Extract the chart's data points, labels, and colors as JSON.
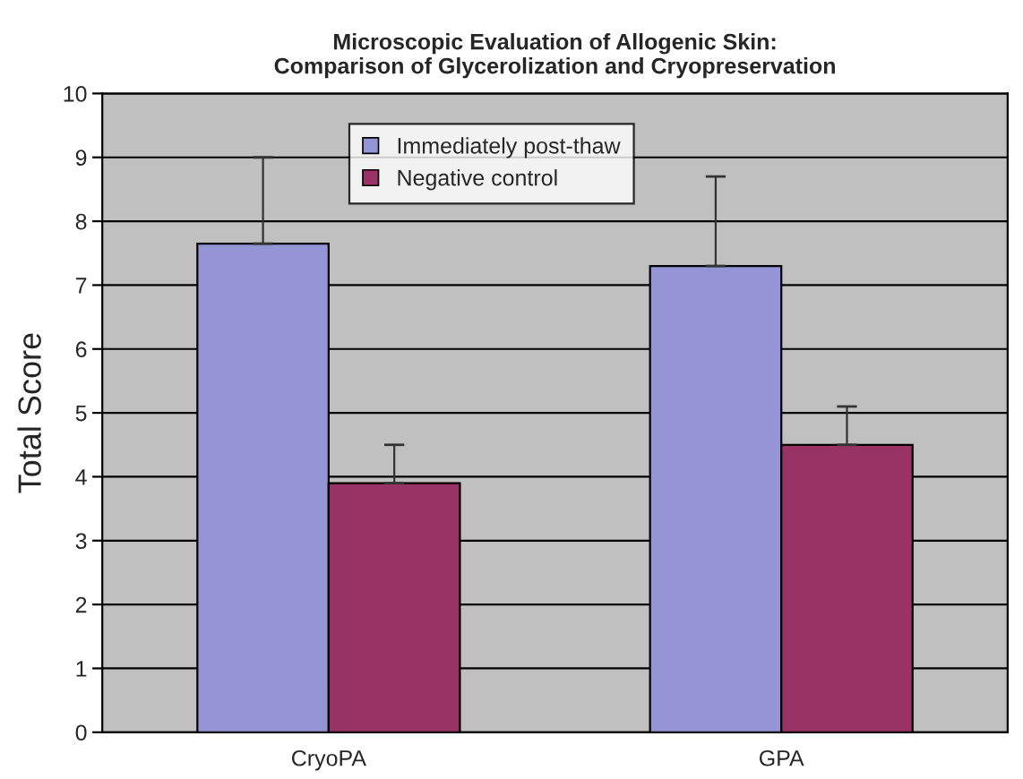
{
  "chart_data": {
    "type": "bar",
    "title": "Microscopic Evaluation of Allogenic Skin:\nComparison of Glycerolization and Cryopreservation",
    "ylabel": "Total Score",
    "categories": [
      "CryoPA",
      "GPA"
    ],
    "series": [
      {
        "name": "Immediately post-thaw",
        "color": "#9494d6",
        "values": [
          7.65,
          7.3
        ],
        "errors": [
          [
            7.65,
            9.0
          ],
          [
            7.3,
            8.7
          ]
        ]
      },
      {
        "name": "Negative control",
        "color": "#993366",
        "values": [
          3.9,
          4.5
        ],
        "errors": [
          [
            3.9,
            4.5
          ],
          [
            4.5,
            5.1
          ]
        ]
      }
    ],
    "ylim": [
      0,
      10
    ],
    "yticks": [
      0,
      1,
      2,
      3,
      4,
      5,
      6,
      7,
      8,
      9,
      10
    ],
    "grid": "y",
    "legend": "top"
  }
}
